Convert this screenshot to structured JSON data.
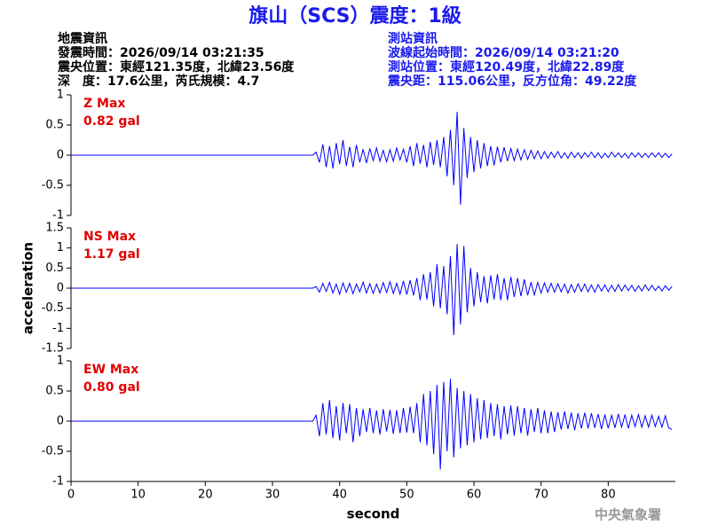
{
  "title": "旗山（SCS）震度：1級",
  "event_info": {
    "heading": "地震資訊",
    "lines": [
      "發震時間：2026/09/14 03:21:35",
      "震央位置：東經121.35度，北緯23.56度",
      "深　度：17.6公里，芮氏規模：4.7"
    ]
  },
  "station_info": {
    "heading": "測站資訊",
    "lines": [
      "波線起始時間：2026/09/14 03:21:20",
      "測站位置：東經120.49度，北緯22.89度",
      "震央距：115.06公里，反方位角：49.22度"
    ]
  },
  "footer": "中央氣象署",
  "chart_data": [
    {
      "type": "line",
      "name": "Z Max",
      "max_label": "0.82 gal",
      "label_color": "#e00000",
      "color": "#0000ff",
      "xlim": [
        0,
        90
      ],
      "ylim": [
        -1,
        1
      ],
      "yticks": [
        -1,
        -0.5,
        0,
        0.5,
        1
      ],
      "x": [
        0,
        36,
        36.5,
        37,
        37.5,
        38,
        38.5,
        39,
        39.5,
        40,
        40.5,
        41,
        41.5,
        42,
        42.5,
        43,
        43.5,
        44,
        44.5,
        45,
        45.5,
        46,
        46.5,
        47,
        47.5,
        48,
        48.5,
        49,
        49.5,
        50,
        50.5,
        51,
        51.5,
        52,
        52.5,
        53,
        53.5,
        54,
        54.5,
        55,
        55.5,
        56,
        56.5,
        57,
        57.5,
        58,
        58.5,
        59,
        59.5,
        60,
        60.5,
        61,
        61.5,
        62,
        62.5,
        63,
        63.5,
        64,
        64.5,
        65,
        65.5,
        66,
        66.5,
        67,
        67.5,
        68,
        68.5,
        69,
        69.5,
        70,
        70.5,
        71,
        71.5,
        72,
        72.5,
        73,
        73.5,
        74,
        74.5,
        75,
        75.5,
        76,
        76.5,
        77,
        77.5,
        78,
        78.5,
        79,
        79.5,
        80,
        80.5,
        81,
        81.5,
        82,
        82.5,
        83,
        83.5,
        84,
        84.5,
        85,
        85.5,
        86,
        86.5,
        87,
        87.5,
        88,
        88.5,
        89,
        89.5
      ],
      "values": [
        0,
        0,
        0.05,
        -0.12,
        0.18,
        -0.2,
        0.15,
        -0.22,
        0.2,
        -0.15,
        0.25,
        -0.18,
        0.14,
        -0.2,
        0.17,
        -0.12,
        0.1,
        -0.13,
        0.11,
        -0.09,
        0.12,
        -0.1,
        0.08,
        -0.11,
        0.09,
        -0.1,
        0.12,
        -0.08,
        0.1,
        -0.12,
        0.15,
        -0.18,
        0.2,
        -0.14,
        0.17,
        -0.2,
        0.22,
        -0.16,
        0.25,
        -0.2,
        0.3,
        -0.35,
        0.42,
        -0.5,
        0.72,
        -0.82,
        0.45,
        -0.38,
        0.3,
        -0.28,
        0.25,
        -0.22,
        0.2,
        -0.18,
        0.15,
        -0.17,
        0.14,
        -0.12,
        0.13,
        -0.1,
        0.11,
        -0.09,
        0.1,
        -0.08,
        0.09,
        -0.07,
        0.08,
        -0.06,
        0.07,
        -0.06,
        0.06,
        -0.05,
        0.05,
        -0.04,
        0.06,
        -0.05,
        0.04,
        -0.05,
        0.05,
        -0.04,
        0.04,
        -0.05,
        0.04,
        -0.03,
        0.05,
        -0.04,
        0.04,
        -0.05,
        0.03,
        -0.04,
        0.05,
        -0.03,
        0.04,
        -0.04,
        0.03,
        -0.05,
        0.04,
        -0.03,
        0.04,
        -0.04,
        0.03,
        -0.04,
        0.04,
        -0.03,
        0.04,
        -0.04,
        0.03,
        -0.04,
        0.02
      ]
    },
    {
      "type": "line",
      "name": "NS Max",
      "max_label": "1.17 gal",
      "label_color": "#e00000",
      "color": "#0000ff",
      "ylabel": "acceleration",
      "xlim": [
        0,
        90
      ],
      "ylim": [
        -1.5,
        1.5
      ],
      "yticks": [
        -1.5,
        -1,
        -0.5,
        0,
        0.5,
        1,
        1.5
      ],
      "x": [
        0,
        36,
        36.5,
        37,
        37.5,
        38,
        38.5,
        39,
        39.5,
        40,
        40.5,
        41,
        41.5,
        42,
        42.5,
        43,
        43.5,
        44,
        44.5,
        45,
        45.5,
        46,
        46.5,
        47,
        47.5,
        48,
        48.5,
        49,
        49.5,
        50,
        50.5,
        51,
        51.5,
        52,
        52.5,
        53,
        53.5,
        54,
        54.5,
        55,
        55.5,
        56,
        56.5,
        57,
        57.5,
        58,
        58.5,
        59,
        59.5,
        60,
        60.5,
        61,
        61.5,
        62,
        62.5,
        63,
        63.5,
        64,
        64.5,
        65,
        65.5,
        66,
        66.5,
        67,
        67.5,
        68,
        68.5,
        69,
        69.5,
        70,
        70.5,
        71,
        71.5,
        72,
        72.5,
        73,
        73.5,
        74,
        74.5,
        75,
        75.5,
        76,
        76.5,
        77,
        77.5,
        78,
        78.5,
        79,
        79.5,
        80,
        80.5,
        81,
        81.5,
        82,
        82.5,
        83,
        83.5,
        84,
        84.5,
        85,
        85.5,
        86,
        86.5,
        87,
        87.5,
        88,
        88.5,
        89,
        89.5
      ],
      "values": [
        0,
        0,
        0.04,
        -0.1,
        0.12,
        -0.08,
        0.14,
        -0.12,
        0.1,
        -0.15,
        0.13,
        -0.1,
        0.12,
        -0.14,
        0.1,
        -0.09,
        0.15,
        -0.12,
        0.11,
        -0.13,
        0.1,
        -0.12,
        0.14,
        -0.11,
        0.16,
        -0.13,
        0.12,
        -0.15,
        0.18,
        -0.16,
        0.2,
        -0.18,
        0.25,
        -0.3,
        0.35,
        -0.28,
        0.4,
        -0.45,
        0.6,
        -0.5,
        0.55,
        -0.65,
        0.8,
        -1.17,
        1.1,
        -0.9,
        1.05,
        -0.6,
        0.5,
        -0.45,
        0.4,
        -0.35,
        0.3,
        -0.38,
        0.32,
        -0.28,
        0.35,
        -0.3,
        0.25,
        -0.3,
        0.28,
        -0.22,
        0.25,
        -0.2,
        0.22,
        -0.18,
        0.15,
        -0.17,
        0.14,
        -0.12,
        0.13,
        -0.1,
        0.12,
        -0.1,
        0.11,
        -0.09,
        0.1,
        -0.12,
        0.09,
        -0.1,
        0.11,
        -0.08,
        0.1,
        -0.09,
        0.08,
        -0.1,
        0.09,
        -0.07,
        0.08,
        -0.09,
        0.07,
        -0.08,
        0.09,
        -0.07,
        0.08,
        -0.06,
        0.07,
        -0.08,
        0.06,
        -0.07,
        0.08,
        -0.06,
        0.07,
        -0.06,
        0.05,
        -0.07,
        0.06,
        -0.05,
        0.04
      ]
    },
    {
      "type": "line",
      "name": "EW Max",
      "max_label": "0.80 gal",
      "label_color": "#e00000",
      "color": "#0000ff",
      "xlabel": "second",
      "xlim": [
        0,
        90
      ],
      "xticks": [
        0,
        10,
        20,
        30,
        40,
        50,
        60,
        70,
        80
      ],
      "ylim": [
        -1,
        1
      ],
      "yticks": [
        -1,
        -0.5,
        0,
        0.5,
        1
      ],
      "x": [
        0,
        36,
        36.5,
        37,
        37.5,
        38,
        38.5,
        39,
        39.5,
        40,
        40.5,
        41,
        41.5,
        42,
        42.5,
        43,
        43.5,
        44,
        44.5,
        45,
        45.5,
        46,
        46.5,
        47,
        47.5,
        48,
        48.5,
        49,
        49.5,
        50,
        50.5,
        51,
        51.5,
        52,
        52.5,
        53,
        53.5,
        54,
        54.5,
        55,
        55.5,
        56,
        56.5,
        57,
        57.5,
        58,
        58.5,
        59,
        59.5,
        60,
        60.5,
        61,
        61.5,
        62,
        62.5,
        63,
        63.5,
        64,
        64.5,
        65,
        65.5,
        66,
        66.5,
        67,
        67.5,
        68,
        68.5,
        69,
        69.5,
        70,
        70.5,
        71,
        71.5,
        72,
        72.5,
        73,
        73.5,
        74,
        74.5,
        75,
        75.5,
        76,
        76.5,
        77,
        77.5,
        78,
        78.5,
        79,
        79.5,
        80,
        80.5,
        81,
        81.5,
        82,
        82.5,
        83,
        83.5,
        84,
        84.5,
        85,
        85.5,
        86,
        86.5,
        87,
        87.5,
        88,
        88.5,
        89,
        89.5
      ],
      "values": [
        0,
        0,
        0.1,
        -0.25,
        0.3,
        -0.22,
        0.35,
        -0.28,
        0.25,
        -0.32,
        0.3,
        -0.2,
        0.28,
        -0.35,
        0.22,
        -0.25,
        0.2,
        -0.18,
        0.22,
        -0.2,
        0.18,
        -0.22,
        0.2,
        -0.17,
        0.19,
        -0.21,
        0.18,
        -0.2,
        0.22,
        -0.19,
        0.24,
        -0.2,
        0.3,
        -0.35,
        0.45,
        -0.4,
        0.5,
        -0.55,
        0.6,
        -0.8,
        0.65,
        -0.5,
        0.7,
        -0.6,
        0.55,
        -0.45,
        0.5,
        -0.4,
        0.45,
        -0.35,
        0.38,
        -0.3,
        0.35,
        -0.28,
        0.3,
        -0.25,
        0.28,
        -0.3,
        0.25,
        -0.22,
        0.26,
        -0.24,
        0.25,
        -0.2,
        0.22,
        -0.24,
        0.2,
        -0.18,
        0.22,
        -0.2,
        0.18,
        -0.2,
        0.16,
        -0.18,
        0.15,
        -0.14,
        0.16,
        -0.13,
        0.14,
        -0.15,
        0.13,
        -0.12,
        0.14,
        -0.12,
        0.13,
        -0.11,
        0.12,
        -0.13,
        0.11,
        -0.12,
        0.1,
        -0.11,
        0.12,
        -0.1,
        0.11,
        -0.12,
        0.1,
        -0.09,
        0.11,
        -0.1,
        0.09,
        -0.1,
        0.1,
        -0.09,
        0.08,
        -0.1,
        0.09,
        -0.11,
        -0.14
      ]
    }
  ]
}
